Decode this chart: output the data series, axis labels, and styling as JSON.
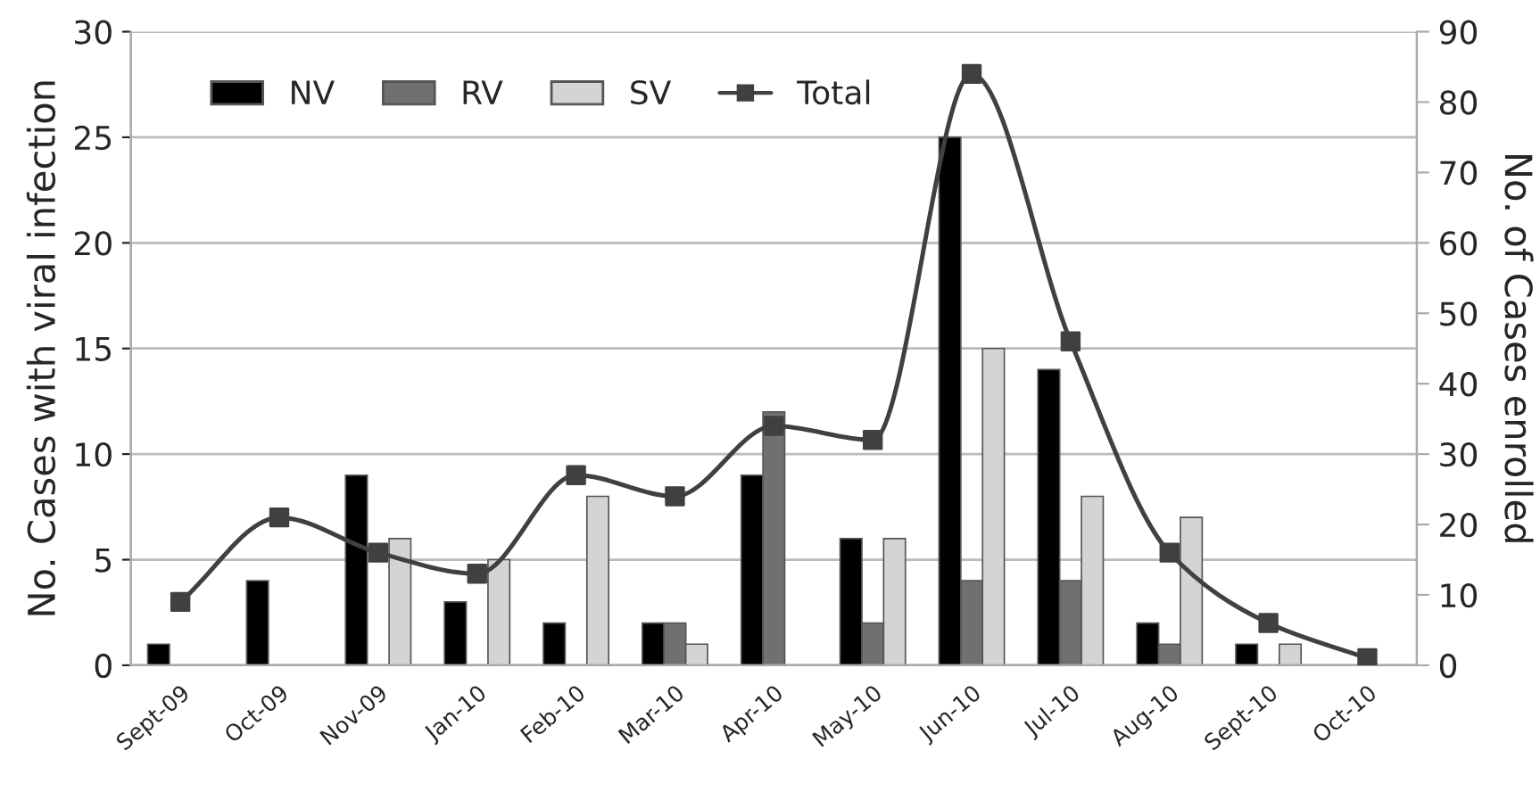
{
  "chart_data": {
    "type": "bar",
    "ylabel": "No. Cases with viral infection",
    "y2label": "No. of Cases enrolled",
    "categories": [
      "Sept-09",
      "Oct-09",
      "Nov-09",
      "Jan-10",
      "Feb-10",
      "Mar-10",
      "Apr-10",
      "May-10",
      "Jun-10",
      "Jul-10",
      "Aug-10",
      "Sept-10",
      "Oct-10"
    ],
    "series": [
      {
        "name": "NV",
        "color": "#000000",
        "values": [
          1,
          4,
          9,
          3,
          2,
          2,
          9,
          6,
          25,
          14,
          2,
          1,
          null
        ]
      },
      {
        "name": "RV",
        "color": "#707070",
        "values": [
          null,
          null,
          null,
          null,
          null,
          2,
          12,
          2,
          4,
          4,
          1,
          null,
          null
        ]
      },
      {
        "name": "SV",
        "color": "#d4d4d4",
        "values": [
          null,
          null,
          6,
          5,
          8,
          1,
          null,
          6,
          15,
          8,
          7,
          1,
          null
        ]
      },
      {
        "name": "Total",
        "type": "line",
        "axis": "y2",
        "color": "#404040",
        "values": [
          9,
          21,
          16,
          13,
          27,
          24,
          34,
          32,
          84,
          46,
          16,
          6,
          1
        ]
      }
    ],
    "ylim": [
      0,
      30
    ],
    "yticks": [
      0,
      5,
      10,
      15,
      20,
      25,
      30
    ],
    "y2lim": [
      0,
      90
    ],
    "y2ticks": [
      0,
      10,
      20,
      30,
      40,
      50,
      60,
      70,
      80,
      90
    ],
    "grid": "y",
    "legend": "top left",
    "marker": "square",
    "line_style": "solid"
  }
}
